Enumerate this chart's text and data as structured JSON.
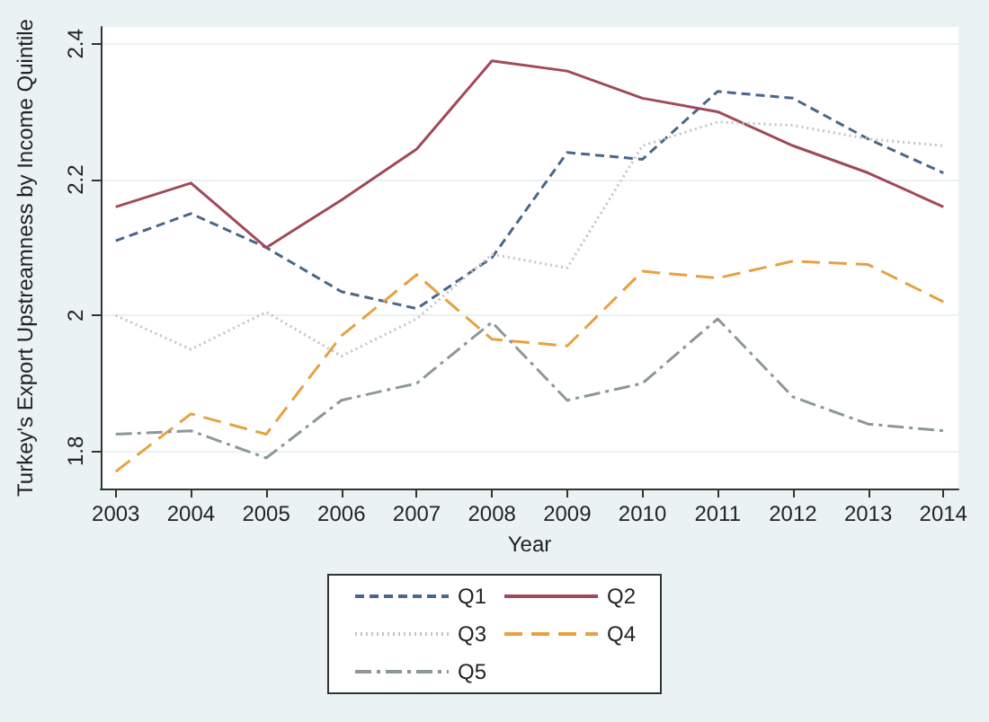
{
  "chart_data": {
    "type": "line",
    "xlabel": "Year",
    "ylabel": "Turkey's Export Upstreamness by Income Quintile",
    "x": [
      2003,
      2004,
      2005,
      2006,
      2007,
      2008,
      2009,
      2010,
      2011,
      2012,
      2013,
      2014
    ],
    "xlim": [
      2002.8,
      2014.2
    ],
    "xticks": [
      2003,
      2004,
      2005,
      2006,
      2007,
      2008,
      2009,
      2010,
      2011,
      2012,
      2013,
      2014
    ],
    "ylim": [
      1.745,
      2.425
    ],
    "yticks": [
      1.8,
      2,
      2.2,
      2.4
    ],
    "grid": "y",
    "legend": "bottom",
    "marker": "none",
    "series": [
      {
        "name": "Q1",
        "color": "#4a6688",
        "line_style": "dashed",
        "values": [
          2.11,
          2.15,
          2.1,
          2.035,
          2.01,
          2.085,
          2.24,
          2.23,
          2.33,
          2.32,
          2.26,
          2.21
        ]
      },
      {
        "name": "Q2",
        "color": "#a04a58",
        "line_style": "solid",
        "values": [
          2.16,
          2.195,
          2.1,
          2.17,
          2.245,
          2.375,
          2.36,
          2.32,
          2.3,
          2.25,
          2.21,
          2.16
        ]
      },
      {
        "name": "Q3",
        "color": "#c4c4c4",
        "line_style": "dotted",
        "values": [
          2.0,
          1.95,
          2.005,
          1.94,
          1.995,
          2.09,
          2.07,
          2.25,
          2.285,
          2.28,
          2.26,
          2.25
        ]
      },
      {
        "name": "Q4",
        "color": "#e8a040",
        "line_style": "longdash",
        "values": [
          1.77,
          1.855,
          1.825,
          1.97,
          2.06,
          1.965,
          1.955,
          2.065,
          2.055,
          2.08,
          2.075,
          2.02
        ]
      },
      {
        "name": "Q5",
        "color": "#8c9898",
        "line_style": "dashdot",
        "values": [
          1.825,
          1.83,
          1.79,
          1.875,
          1.9,
          1.99,
          1.875,
          1.9,
          1.995,
          1.88,
          1.84,
          1.83
        ]
      }
    ]
  }
}
